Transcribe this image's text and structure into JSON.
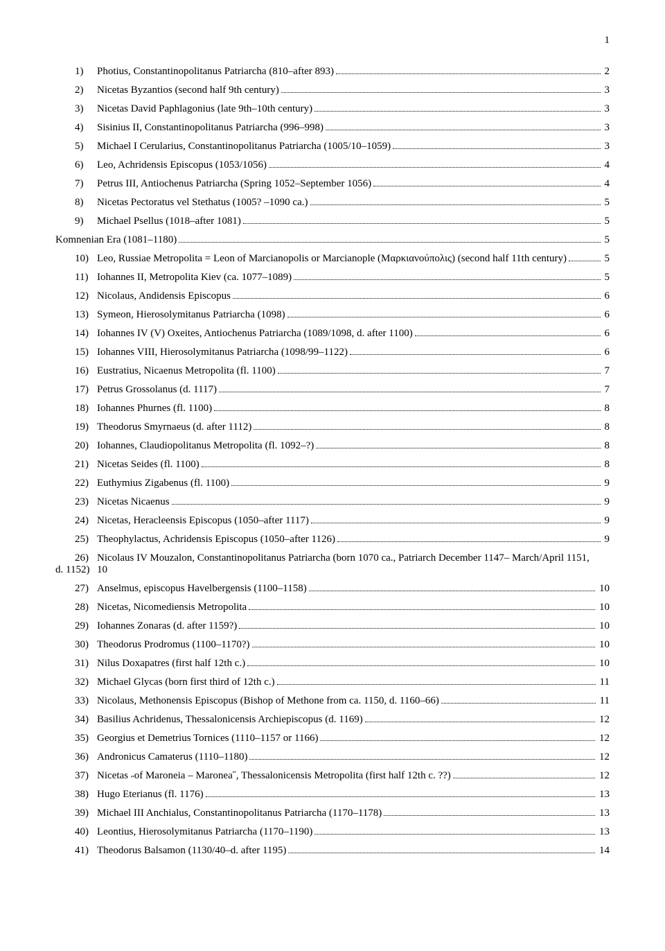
{
  "page_number": "1",
  "font_family": "Times New Roman",
  "font_size_pt": 11,
  "text_color": "#000000",
  "background_color": "#ffffff",
  "entries": [
    {
      "num": "1)",
      "text": "Photius, Constantinopolitanus Patriarcha (810–after 893)",
      "page": "2"
    },
    {
      "num": "2)",
      "text": "Nicetas Byzantios (second half 9th century)",
      "page": "3"
    },
    {
      "num": "3)",
      "text": "Nicetas David Paphlagonius (late 9th–10th century)",
      "page": "3"
    },
    {
      "num": "4)",
      "text": "Sisinius II, Constantinopolitanus Patriarcha (996–998)",
      "page": "3"
    },
    {
      "num": "5)",
      "text": "Michael I Cerularius, Constantinopolitanus Patriarcha (1005/10–1059)",
      "page": "3"
    },
    {
      "num": "6)",
      "text": "Leo, Achridensis Episcopus (1053/1056)",
      "page": "4"
    },
    {
      "num": "7)",
      "text": "Petrus III, Antiochenus Patriarcha (Spring 1052–September 1056)",
      "page": "4"
    },
    {
      "num": "8)",
      "text": "Nicetas Pectoratus vel Stethatus (1005? –1090 ca.)",
      "page": "5"
    },
    {
      "num": "9)",
      "text": "Michael Psellus (1018–after 1081)",
      "page": "5"
    },
    {
      "section": true,
      "text": "Komnenian Era (1081–1180)",
      "page": "5"
    },
    {
      "num": "10)",
      "text": "Leo, Russiae Metropolita = Leon of Marcianopolis or Marcianople (Μαρκιανούπολις) (second half 11th century)",
      "page": "5"
    },
    {
      "num": "11)",
      "text": "Iohannes II, Metropolita Kiev (ca. 1077–1089)",
      "page": "5"
    },
    {
      "num": "12)",
      "text": "Nicolaus, Andidensis Episcopus",
      "page": "6"
    },
    {
      "num": "13)",
      "text": "Symeon, Hierosolymitanus Patriarcha (1098)",
      "page": "6"
    },
    {
      "num": "14)",
      "text": "Iohannes IV (V) Oxeites, Antiochenus Patriarcha (1089/1098, d. after 1100)",
      "page": "6"
    },
    {
      "num": "15)",
      "text": "Iohannes VIII, Hierosolymitanus Patriarcha (1098/99–1122)",
      "page": "6"
    },
    {
      "num": "16)",
      "text": "Eustratius, Nicaenus Metropolita (fl. 1100)",
      "page": "7"
    },
    {
      "num": "17)",
      "text": "Petrus Grossolanus (d. 1117)",
      "page": "7"
    },
    {
      "num": "18)",
      "text": "Iohannes Phurnes (fl. 1100)",
      "page": "8"
    },
    {
      "num": "19)",
      "text": "Theodorus Smyrnaeus (d. after 1112)",
      "page": "8"
    },
    {
      "num": "20)",
      "text": "Iohannes, Claudiopolitanus Metropolita (fl. 1092–?)",
      "page": "8"
    },
    {
      "num": "21)",
      "text": "Nicetas Seides (fl. 1100)",
      "page": "8"
    },
    {
      "num": "22)",
      "text": "Euthymius Zigabenus (fl. 1100)",
      "page": "9"
    },
    {
      "num": "23)",
      "text": "Nicetas Nicaenus",
      "page": "9"
    },
    {
      "num": "24)",
      "text": "Nicetas, Heracleensis Episcopus (1050–after 1117)",
      "page": "9"
    },
    {
      "num": "25)",
      "text": "Theophylactus, Achridensis Episcopus (1050–after 1126)",
      "page": "9"
    },
    {
      "num": "26)",
      "num_suffix": "d. 1152)",
      "text_line1": "Nicolaus IV Mouzalon, Constantinopolitanus Patriarcha (born 1070 ca., Patriarch December 1147– March/April 1151,",
      "text_line2": "10",
      "multiline": true
    },
    {
      "num": "27)",
      "text": "Anselmus, episcopus Havelbergensis (1100–1158)",
      "page": "10"
    },
    {
      "num": "28)",
      "text": "Nicetas, Nicomediensis Metropolita",
      "page": "10"
    },
    {
      "num": "29)",
      "text": "Iohannes Zonaras (d. after 1159?)",
      "page": "10"
    },
    {
      "num": "30)",
      "text": "Theodorus Prodromus (1100–1170?)",
      "page": "10"
    },
    {
      "num": "31)",
      "text": "Nilus Doxapatres (first half 12th c.)",
      "page": "10"
    },
    {
      "num": "32)",
      "text": "Michael Glycas (born first third of 12th c.)",
      "page": "11"
    },
    {
      "num": "33)",
      "text": "Nicolaus, Methonensis Episcopus (Bishop of Methone from ca. 1150, d. 1160–66)",
      "page": "11"
    },
    {
      "num": "34)",
      "text": "Basilius Achridenus, Thessalonicensis Archiepiscopus (d. 1169)",
      "page": "12"
    },
    {
      "num": "35)",
      "text": "Georgius et Demetrius Tornices (1110–1157 or 1166)",
      "page": "12"
    },
    {
      "num": "36)",
      "text": "Andronicus Camaterus (1110–1180)",
      "page": "12"
    },
    {
      "num": "37)",
      "text": "Nicetas ˶of Maroneia – Maronea˝, Thessalonicensis Metropolita (first half 12th c. ??)",
      "page": "12"
    },
    {
      "num": "38)",
      "text": "Hugo Eterianus (fl. 1176)",
      "page": "13"
    },
    {
      "num": "39)",
      "text": "Michael III Anchialus, Constantinopolitanus Patriarcha (1170–1178)",
      "page": "13"
    },
    {
      "num": "40)",
      "text": "Leontius, Hierosolymitanus Patriarcha (1170–1190)",
      "page": "13"
    },
    {
      "num": "41)",
      "text": "Theodorus Balsamon (1130/40–d. after 1195)",
      "page": "14"
    }
  ]
}
